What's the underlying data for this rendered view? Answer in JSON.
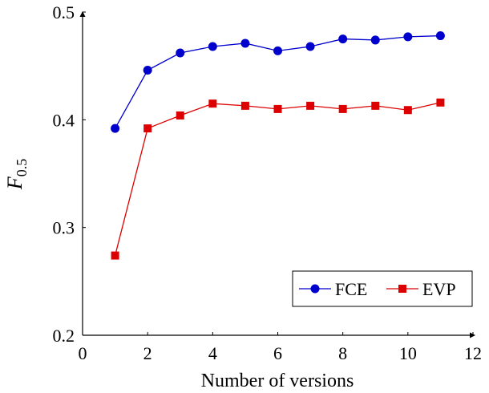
{
  "chart_data": {
    "type": "line",
    "title": "",
    "xlabel": "Number of versions",
    "ylabel": "F",
    "ylabel_subscript": "0.5",
    "xlim": [
      0,
      12
    ],
    "ylim": [
      0.2,
      0.5
    ],
    "xticks": [
      0,
      2,
      4,
      6,
      8,
      10,
      12
    ],
    "yticks": [
      0.2,
      0.3,
      0.4,
      0.5
    ],
    "xtick_labels": [
      "0",
      "2",
      "4",
      "6",
      "8",
      "10",
      "12"
    ],
    "ytick_labels": [
      "0.2",
      "0.3",
      "0.4",
      "0.5"
    ],
    "grid": false,
    "legend_position": "bottom-right",
    "x": [
      1,
      2,
      3,
      4,
      5,
      6,
      7,
      8,
      9,
      10,
      11
    ],
    "series": [
      {
        "name": "FCE",
        "color": "#0000cc",
        "marker": "circle",
        "values": [
          0.392,
          0.446,
          0.462,
          0.468,
          0.471,
          0.464,
          0.468,
          0.475,
          0.474,
          0.477,
          0.478
        ]
      },
      {
        "name": "EVP",
        "color": "#dd0000",
        "marker": "square",
        "values": [
          0.274,
          0.392,
          0.404,
          0.415,
          0.413,
          0.41,
          0.413,
          0.41,
          0.413,
          0.409,
          0.416
        ]
      }
    ]
  }
}
